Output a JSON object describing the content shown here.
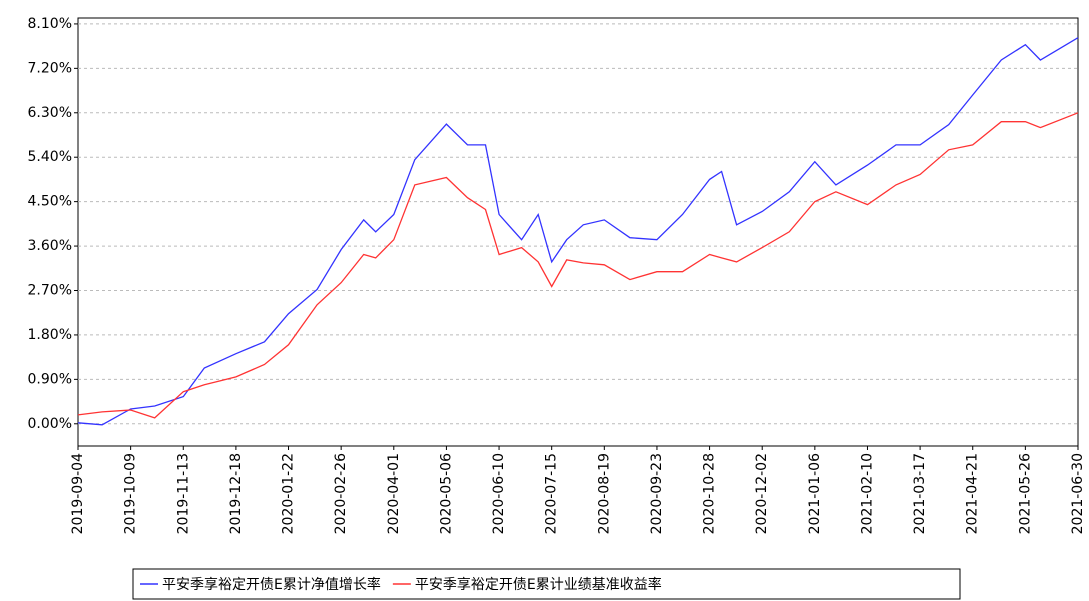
{
  "chart_data": {
    "type": "line",
    "x": [
      "2019-09-04",
      "2019-09-20",
      "2019-10-09",
      "2019-10-25",
      "2019-11-13",
      "2019-11-27",
      "2019-12-18",
      "2020-01-06",
      "2020-01-22",
      "2020-02-10",
      "2020-02-26",
      "2020-03-12",
      "2020-03-20",
      "2020-04-01",
      "2020-04-15",
      "2020-05-06",
      "2020-05-20",
      "2020-06-01",
      "2020-06-10",
      "2020-06-25",
      "2020-07-06",
      "2020-07-15",
      "2020-07-25",
      "2020-08-05",
      "2020-08-19",
      "2020-09-05",
      "2020-09-23",
      "2020-10-10",
      "2020-10-28",
      "2020-11-05",
      "2020-11-15",
      "2020-12-02",
      "2020-12-20",
      "2021-01-06",
      "2021-01-20",
      "2021-02-10",
      "2021-03-01",
      "2021-03-17",
      "2021-04-05",
      "2021-04-21",
      "2021-05-10",
      "2021-05-26",
      "2021-06-05",
      "2021-06-30"
    ],
    "series": [
      {
        "name": "平安季享裕定开债E累计净值增长率",
        "color": "#3333ff",
        "values": [
          0.02,
          -0.02,
          0.3,
          0.36,
          0.55,
          1.13,
          1.42,
          1.66,
          2.23,
          2.72,
          3.53,
          4.13,
          3.89,
          4.24,
          5.35,
          6.07,
          5.65,
          5.65,
          4.24,
          3.73,
          4.24,
          3.28,
          3.73,
          4.03,
          4.13,
          3.77,
          3.73,
          4.24,
          4.95,
          5.11,
          4.03,
          4.3,
          4.7,
          5.31,
          4.84,
          5.24,
          5.65,
          5.65,
          6.06,
          6.66,
          7.37,
          7.68,
          7.37,
          7.82
        ]
      },
      {
        "name": "平安季享裕定开债E累计业绩基准收益率",
        "color": "#ff3333",
        "values": [
          0.18,
          0.24,
          0.28,
          0.12,
          0.65,
          0.79,
          0.95,
          1.2,
          1.6,
          2.41,
          2.86,
          3.43,
          3.36,
          3.73,
          4.84,
          4.99,
          4.58,
          4.34,
          3.43,
          3.57,
          3.28,
          2.78,
          3.32,
          3.26,
          3.22,
          2.92,
          3.08,
          3.08,
          3.43,
          3.36,
          3.28,
          3.57,
          3.89,
          4.5,
          4.7,
          4.44,
          4.84,
          5.05,
          5.55,
          5.65,
          6.12,
          6.12,
          6.0,
          6.3
        ]
      }
    ],
    "xlim": [
      "2019-09-04",
      "2021-06-30"
    ],
    "xticks": [
      "2019-09-04",
      "2019-10-09",
      "2019-11-13",
      "2019-12-18",
      "2020-01-22",
      "2020-02-26",
      "2020-04-01",
      "2020-05-06",
      "2020-06-10",
      "2020-07-15",
      "2020-08-19",
      "2020-09-23",
      "2020-10-28",
      "2020-12-02",
      "2021-01-06",
      "2021-02-10",
      "2021-03-17",
      "2021-04-21",
      "2021-05-26",
      "2021-06-30"
    ],
    "ylim": [
      -0.45,
      8.22
    ],
    "yticks": [
      {
        "value": 0,
        "label": "0.00%"
      },
      {
        "value": 0.9,
        "label": "0.90%"
      },
      {
        "value": 1.8,
        "label": "1.80%"
      },
      {
        "value": 2.7,
        "label": "2.70%"
      },
      {
        "value": 3.6,
        "label": "3.60%"
      },
      {
        "value": 4.5,
        "label": "4.50%"
      },
      {
        "value": 5.4,
        "label": "5.40%"
      },
      {
        "value": 6.3,
        "label": "6.30%"
      },
      {
        "value": 7.2,
        "label": "7.20%"
      },
      {
        "value": 8.1,
        "label": "8.10%"
      }
    ],
    "grid": true
  }
}
